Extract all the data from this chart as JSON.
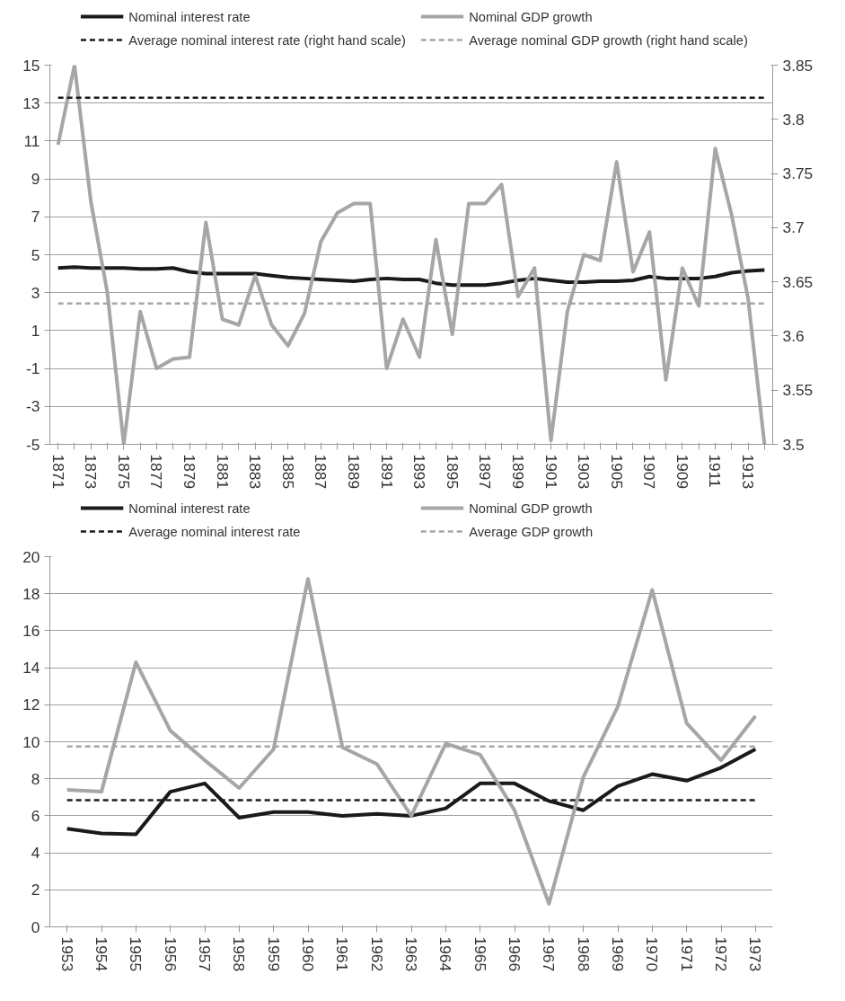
{
  "chart_data": [
    {
      "type": "line",
      "categories": [
        "1871",
        null,
        "1873",
        null,
        "1875",
        null,
        "1877",
        null,
        "1879",
        null,
        "1881",
        null,
        "1883",
        null,
        "1885",
        null,
        "1887",
        null,
        "1889",
        null,
        "1891",
        null,
        "1893",
        null,
        "1895",
        null,
        "1897",
        null,
        "1899",
        null,
        "1901",
        null,
        "1903",
        null,
        "1905",
        null,
        "1907",
        null,
        "1909",
        null,
        "1911",
        null,
        "1913",
        null
      ],
      "series": [
        {
          "name": "Nominal interest rate",
          "color": "#1a1a1a",
          "values": [
            4.3,
            4.35,
            4.3,
            4.3,
            4.3,
            4.25,
            4.25,
            4.3,
            4.1,
            4.0,
            4.0,
            4.0,
            4.0,
            3.9,
            3.8,
            3.75,
            3.7,
            3.65,
            3.6,
            3.7,
            3.75,
            3.7,
            3.7,
            3.5,
            3.4,
            3.4,
            3.4,
            3.5,
            3.65,
            3.75,
            3.65,
            3.55,
            3.55,
            3.6,
            3.6,
            3.65,
            3.85,
            3.75,
            3.75,
            3.75,
            3.85,
            4.05,
            4.15,
            4.2
          ]
        },
        {
          "name": "Nominal GDP growth",
          "color": "#a6a6a6",
          "values": [
            10.8,
            15,
            7.8,
            3.0,
            -5,
            2.0,
            -1.0,
            -0.5,
            -0.4,
            6.7,
            1.6,
            1.3,
            3.9,
            1.3,
            0.2,
            1.9,
            5.7,
            7.2,
            7.7,
            7.7,
            -1.0,
            1.6,
            -0.4,
            5.8,
            0.8,
            7.7,
            7.7,
            8.7,
            2.8,
            4.3,
            -4.8,
            2.0,
            5.0,
            4.7,
            9.9,
            4.1,
            6.2,
            -1.6,
            4.3,
            2.3,
            10.6,
            7.1,
            2.7,
            -5.0
          ]
        }
      ],
      "ylim": [
        -5,
        15
      ],
      "yticks": [
        -5,
        -3,
        -1,
        1,
        3,
        5,
        7,
        9,
        11,
        13,
        15
      ],
      "y2lim": [
        3.5,
        3.85
      ],
      "y2ticks": [
        3.5,
        3.55,
        3.6,
        3.65,
        3.7,
        3.75,
        3.8,
        3.85
      ],
      "ref_lines": [
        {
          "axis": "y2",
          "value": 3.82,
          "label": "Average nominal interest rate (right hand scale)",
          "color": "#1a1a1a",
          "line_style": "dashed"
        },
        {
          "axis": "y2",
          "value": 3.63,
          "label": "Average nominal GDP growth (right hand scale)",
          "color": "#a6a6a6",
          "line_style": "dashed"
        }
      ],
      "grid": "y",
      "legend": "top"
    },
    {
      "type": "line",
      "categories": [
        "1953",
        "1954",
        "1955",
        "1956",
        "1957",
        "1958",
        "1959",
        "1960",
        "1961",
        "1962",
        "1963",
        "1964",
        "1965",
        "1966",
        "1967",
        "1968",
        "1969",
        "1970",
        "1971",
        "1972",
        "1973"
      ],
      "series": [
        {
          "name": "Nominal interest rate",
          "color": "#1a1a1a",
          "values": [
            5.3,
            5.05,
            5.0,
            7.3,
            7.75,
            5.9,
            6.2,
            6.2,
            6.0,
            6.1,
            6.0,
            6.4,
            7.75,
            7.75,
            6.8,
            6.3,
            7.6,
            8.25,
            7.9,
            8.6,
            9.6
          ]
        },
        {
          "name": "Nominal GDP growth",
          "color": "#a6a6a6",
          "values": [
            7.4,
            7.3,
            14.3,
            10.6,
            9.0,
            7.5,
            9.6,
            18.8,
            9.7,
            8.8,
            6.0,
            9.9,
            9.3,
            6.3,
            1.25,
            8.1,
            11.9,
            18.2,
            11.0,
            9.0,
            11.4
          ]
        }
      ],
      "ylim": [
        0,
        20
      ],
      "yticks": [
        0,
        2,
        4,
        6,
        8,
        10,
        12,
        14,
        16,
        18,
        20
      ],
      "ref_lines": [
        {
          "axis": "y",
          "value": 6.85,
          "label": "Average nominal interest rate",
          "color": "#1a1a1a",
          "line_style": "dashed"
        },
        {
          "axis": "y",
          "value": 9.75,
          "label": "Average GDP growth",
          "color": "#a6a6a6",
          "line_style": "dashed"
        }
      ],
      "grid": "y",
      "legend": "top"
    }
  ]
}
